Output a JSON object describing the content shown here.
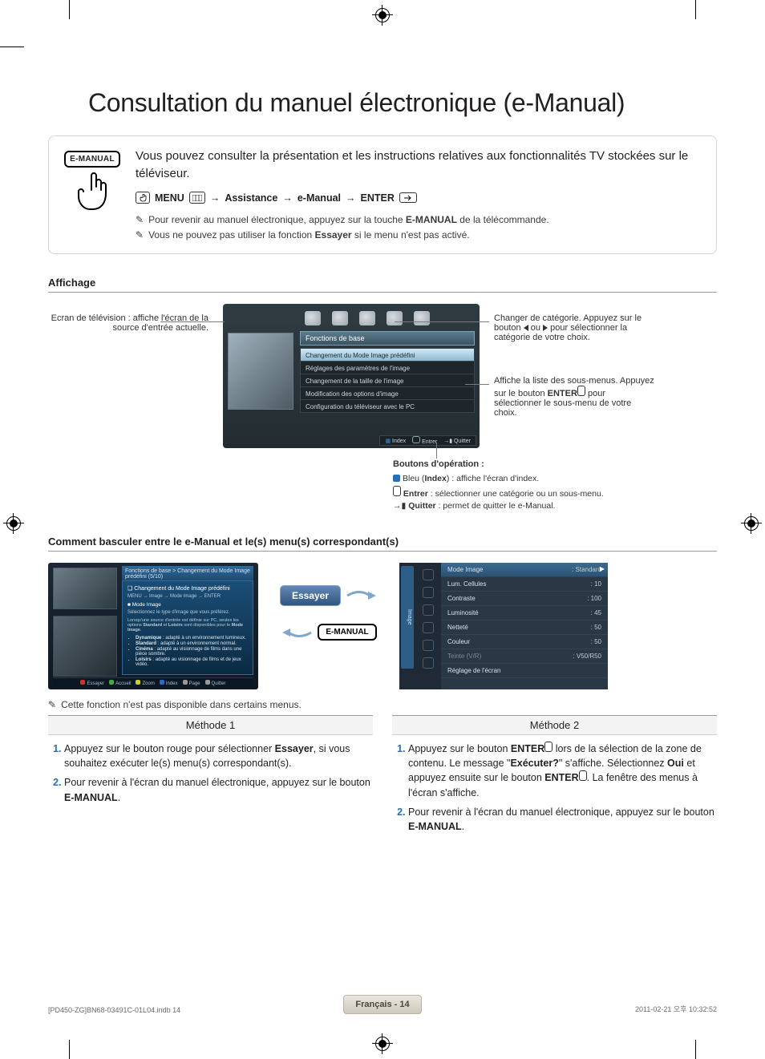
{
  "print": {
    "reg_mark": true
  },
  "title": "Consultation du manuel électronique (e-Manual)",
  "intro": {
    "badge": "E-MANUAL",
    "lead": "Vous pouvez consulter la présentation et les instructions relatives aux fonctionnalités TV stockées sur le téléviseur.",
    "nav": {
      "menu": "MENU",
      "path1": "Assistance",
      "path2": "e-Manual",
      "enter": "ENTER"
    },
    "note1_pre": "Pour revenir au manuel électronique, appuyez sur la touche ",
    "note1_bold": "E-MANUAL",
    "note1_post": " de la télécommande.",
    "note2_pre": "Vous ne pouvez pas utiliser la fonction ",
    "note2_bold": "Essayer",
    "note2_post": " si le menu n'est pas activé."
  },
  "section_display": "Affichage",
  "left_caption": "Ecran de télévision : affiche l'écran de la source d'entrée actuelle.",
  "tv": {
    "topbar": "Fonctions de base",
    "items": [
      "Changement du Mode Image prédéfini",
      "Réglages des paramètres de l'image",
      "Changement de la taille de l'image",
      "Modification des options d'image",
      "Configuration du téléviseur avec le PC"
    ],
    "footer": {
      "index": "Index",
      "enter": "Entrer",
      "quit": "Quitter"
    }
  },
  "right_caption_cat_a": "Changer de catégorie. Appuyez sur le bouton ",
  "right_caption_cat_b": " ou ",
  "right_caption_cat_c": " pour sélectionner la catégorie de votre choix.",
  "right_caption_sub_a": "Affiche la liste des sous-menus. Appuyez sur le bouton ",
  "right_caption_sub_b": "ENTER",
  "right_caption_sub_c": " pour sélectionner le sous-menu de votre choix.",
  "op": {
    "header": "Boutons d'opération :",
    "l1a": "Bleu (",
    "l1b": "Index",
    "l1c": ") : affiche l'écran d'index.",
    "l2a": "Entrer",
    "l2b": " : sélectionner une catégorie ou un sous-menu.",
    "l3a": "Quitter",
    "l3b": " : permet de quitter le e-Manual."
  },
  "section_switch": "Comment basculer entre le e-Manual et le(s) menu(s) correspondant(s)",
  "msA": {
    "breadcrumb": "Fonctions de base > Changement du Mode Image prédéfini (5/10)",
    "panel_title": "Changement du Mode Image prédéfini",
    "panel_nav": "MENU → Image → Mode Image → ENTER",
    "mode_head": "Mode Image",
    "mode_sub": "Sélectionnez le type d'image que vous préférez.",
    "mode_note_a": "Lorsqu'une source d'entrée est définie sur PC, seules les options ",
    "mode_note_b": "Standard",
    "mode_note_c": " et ",
    "mode_note_d": "Loisirs",
    "mode_note_e": " sont disponibles pour le ",
    "mode_note_f": "Mode Image",
    "modes": [
      {
        "n": "Dynamique",
        "d": " : adapté à un environnement lumineux."
      },
      {
        "n": "Standard",
        "d": " : adapté à un environnement normal."
      },
      {
        "n": "Cinéma",
        "d": " : adapté au visionnage de films dans une pièce sombre."
      },
      {
        "n": "Loisirs",
        "d": " : adapté au visionnage de films et de jeux vidéo."
      }
    ],
    "footer_items": [
      "Essayer",
      "Accueil",
      "Zoom",
      "Index",
      "Page",
      "Quitter"
    ]
  },
  "arrows": {
    "try": "Essayer",
    "emanual": "E-MANUAL"
  },
  "msB": {
    "tab": "Image",
    "rows": [
      {
        "label": "Mode Image",
        "value": ": Standard",
        "sel": true
      },
      {
        "label": "Lum. Cellules",
        "value": ": 10"
      },
      {
        "label": "Contraste",
        "value": ": 100"
      },
      {
        "label": "Luminosité",
        "value": ": 45"
      },
      {
        "label": "Netteté",
        "value": ": 50"
      },
      {
        "label": "Couleur",
        "value": ": 50"
      },
      {
        "label": "Teinte (V/R)",
        "value": ": V50/R50",
        "dim": true
      },
      {
        "label": "Réglage de l'écran",
        "value": ""
      }
    ]
  },
  "note_unavailable": "Cette fonction n'est pas disponible dans certains menus.",
  "methods": {
    "h1": "Méthode 1",
    "h2": "Méthode 2",
    "m1": [
      {
        "pre": "Appuyez sur le bouton rouge pour sélectionner ",
        "b1": "Essayer",
        "post": ", si vous souhaitez exécuter le(s) menu(s) correspondant(s)."
      },
      {
        "pre": "Pour revenir à l'écran du manuel électronique, appuyez sur le bouton ",
        "b1": "E-MANUAL",
        "post": "."
      }
    ],
    "m2": [
      {
        "pre": "Appuyez sur le bouton ",
        "b1": "ENTER",
        "mid1": " lors de la sélection de la zone de contenu. Le message \"",
        "b2": "Exécuter?",
        "mid2": "\" s'affiche. Sélectionnez ",
        "b3": "Oui",
        "mid3": " et appuyez ensuite sur le bouton ",
        "b4": "ENTER",
        "post": ". La fenêtre des menus à l'écran s'affiche."
      },
      {
        "pre": "Pour revenir à l'écran du manuel électronique, appuyez sur le bouton ",
        "b1": "E-MANUAL",
        "post": "."
      }
    ]
  },
  "footer": {
    "page_label": "Français - 14",
    "meta_left": "[PD450-ZG]BN68-03491C-01L04.indb   14",
    "meta_right": "2011-02-21   오후 10:32:52"
  },
  "colors": {
    "accent_blue": "#2a6fb3",
    "panel_grad_top": "#5b7c8f",
    "panel_grad_bottom": "#3a5361"
  }
}
